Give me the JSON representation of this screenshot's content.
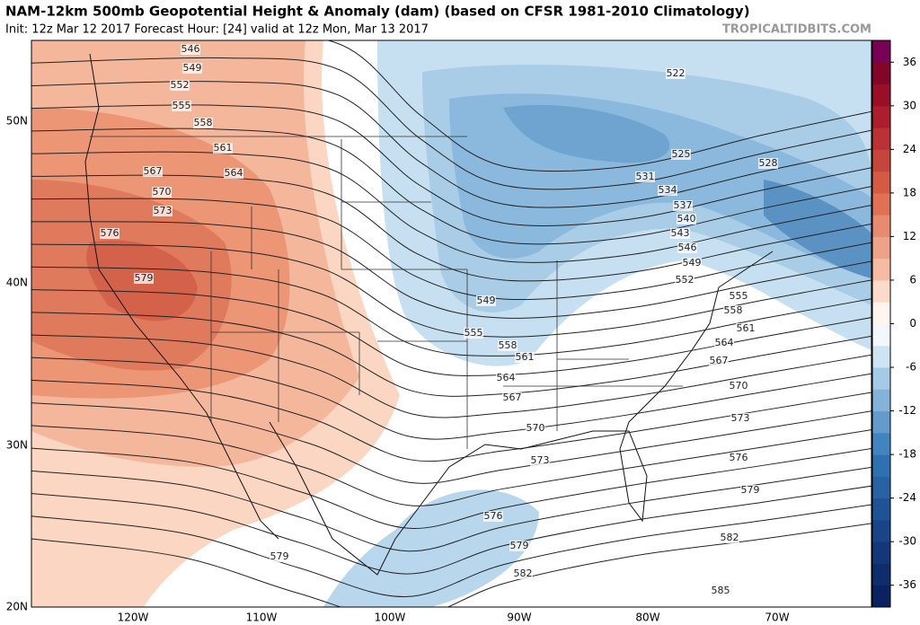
{
  "header": {
    "title": "NAM-12km 500mb Geopotential Height & Anomaly (dam) (based on CFSR 1981-2010 Climatology)",
    "subtitle": "Init: 12z Mar 12 2017   Forecast Hour: [24]   valid at 12z Mon, Mar 13 2017",
    "source": "TROPICALTIDBITS.COM"
  },
  "map": {
    "lat_labels": [
      "50N",
      "40N",
      "30N",
      "20N"
    ],
    "lon_labels": [
      "120W",
      "110W",
      "100W",
      "90W",
      "80W",
      "70W"
    ],
    "contour_labels": [
      "546",
      "549",
      "552",
      "555",
      "558",
      "561",
      "564",
      "567",
      "570",
      "573",
      "576",
      "579",
      "522",
      "525",
      "528",
      "531",
      "534",
      "537",
      "540",
      "543",
      "546",
      "549",
      "552",
      "555",
      "558",
      "561",
      "564",
      "567",
      "570",
      "573",
      "576",
      "579",
      "582",
      "585",
      "549",
      "555",
      "558",
      "561",
      "564",
      "567",
      "570",
      "573",
      "576",
      "579",
      "582",
      "579"
    ]
  },
  "colorbar": {
    "lim": [
      -39,
      39
    ],
    "ticks": [
      36,
      30,
      24,
      18,
      12,
      6,
      0,
      -6,
      -12,
      -18,
      -24,
      -30,
      -36
    ]
  }
}
